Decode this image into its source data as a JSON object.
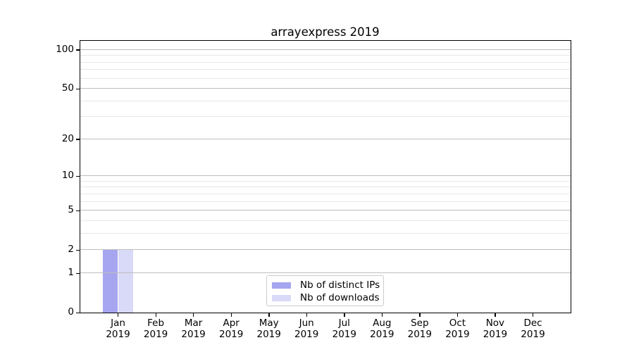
{
  "chart_data": {
    "type": "bar",
    "title": "arrayexpress 2019",
    "categories": [
      "Jan 2019",
      "Feb 2019",
      "Mar 2019",
      "Apr 2019",
      "May 2019",
      "Jun 2019",
      "Jul 2019",
      "Aug 2019",
      "Sep 2019",
      "Oct 2019",
      "Nov 2019",
      "Dec 2019"
    ],
    "series": [
      {
        "name": "Nb of distinct IPs",
        "color": "#a5a5f0",
        "values": [
          2,
          0,
          0,
          0,
          0,
          0,
          0,
          0,
          0,
          0,
          0,
          0
        ]
      },
      {
        "name": "Nb of downloads",
        "color": "#d9d9f8",
        "values": [
          2,
          0,
          0,
          0,
          0,
          0,
          0,
          0,
          0,
          0,
          0,
          0
        ]
      }
    ],
    "yscale": "log10(1+x)",
    "ylim": [
      0,
      117.5
    ],
    "yticks": [
      0,
      1,
      2,
      5,
      10,
      20,
      50,
      100
    ],
    "minor_yticks": [
      3,
      4,
      6,
      7,
      8,
      9,
      30,
      40,
      60,
      70,
      80,
      90
    ],
    "grid": "horizontal",
    "legend_position": "lower center"
  },
  "colors": {
    "grid_major": "#bdbdbd",
    "grid_minor": "#e7e7e7",
    "axis": "#000000",
    "background": "#ffffff"
  }
}
